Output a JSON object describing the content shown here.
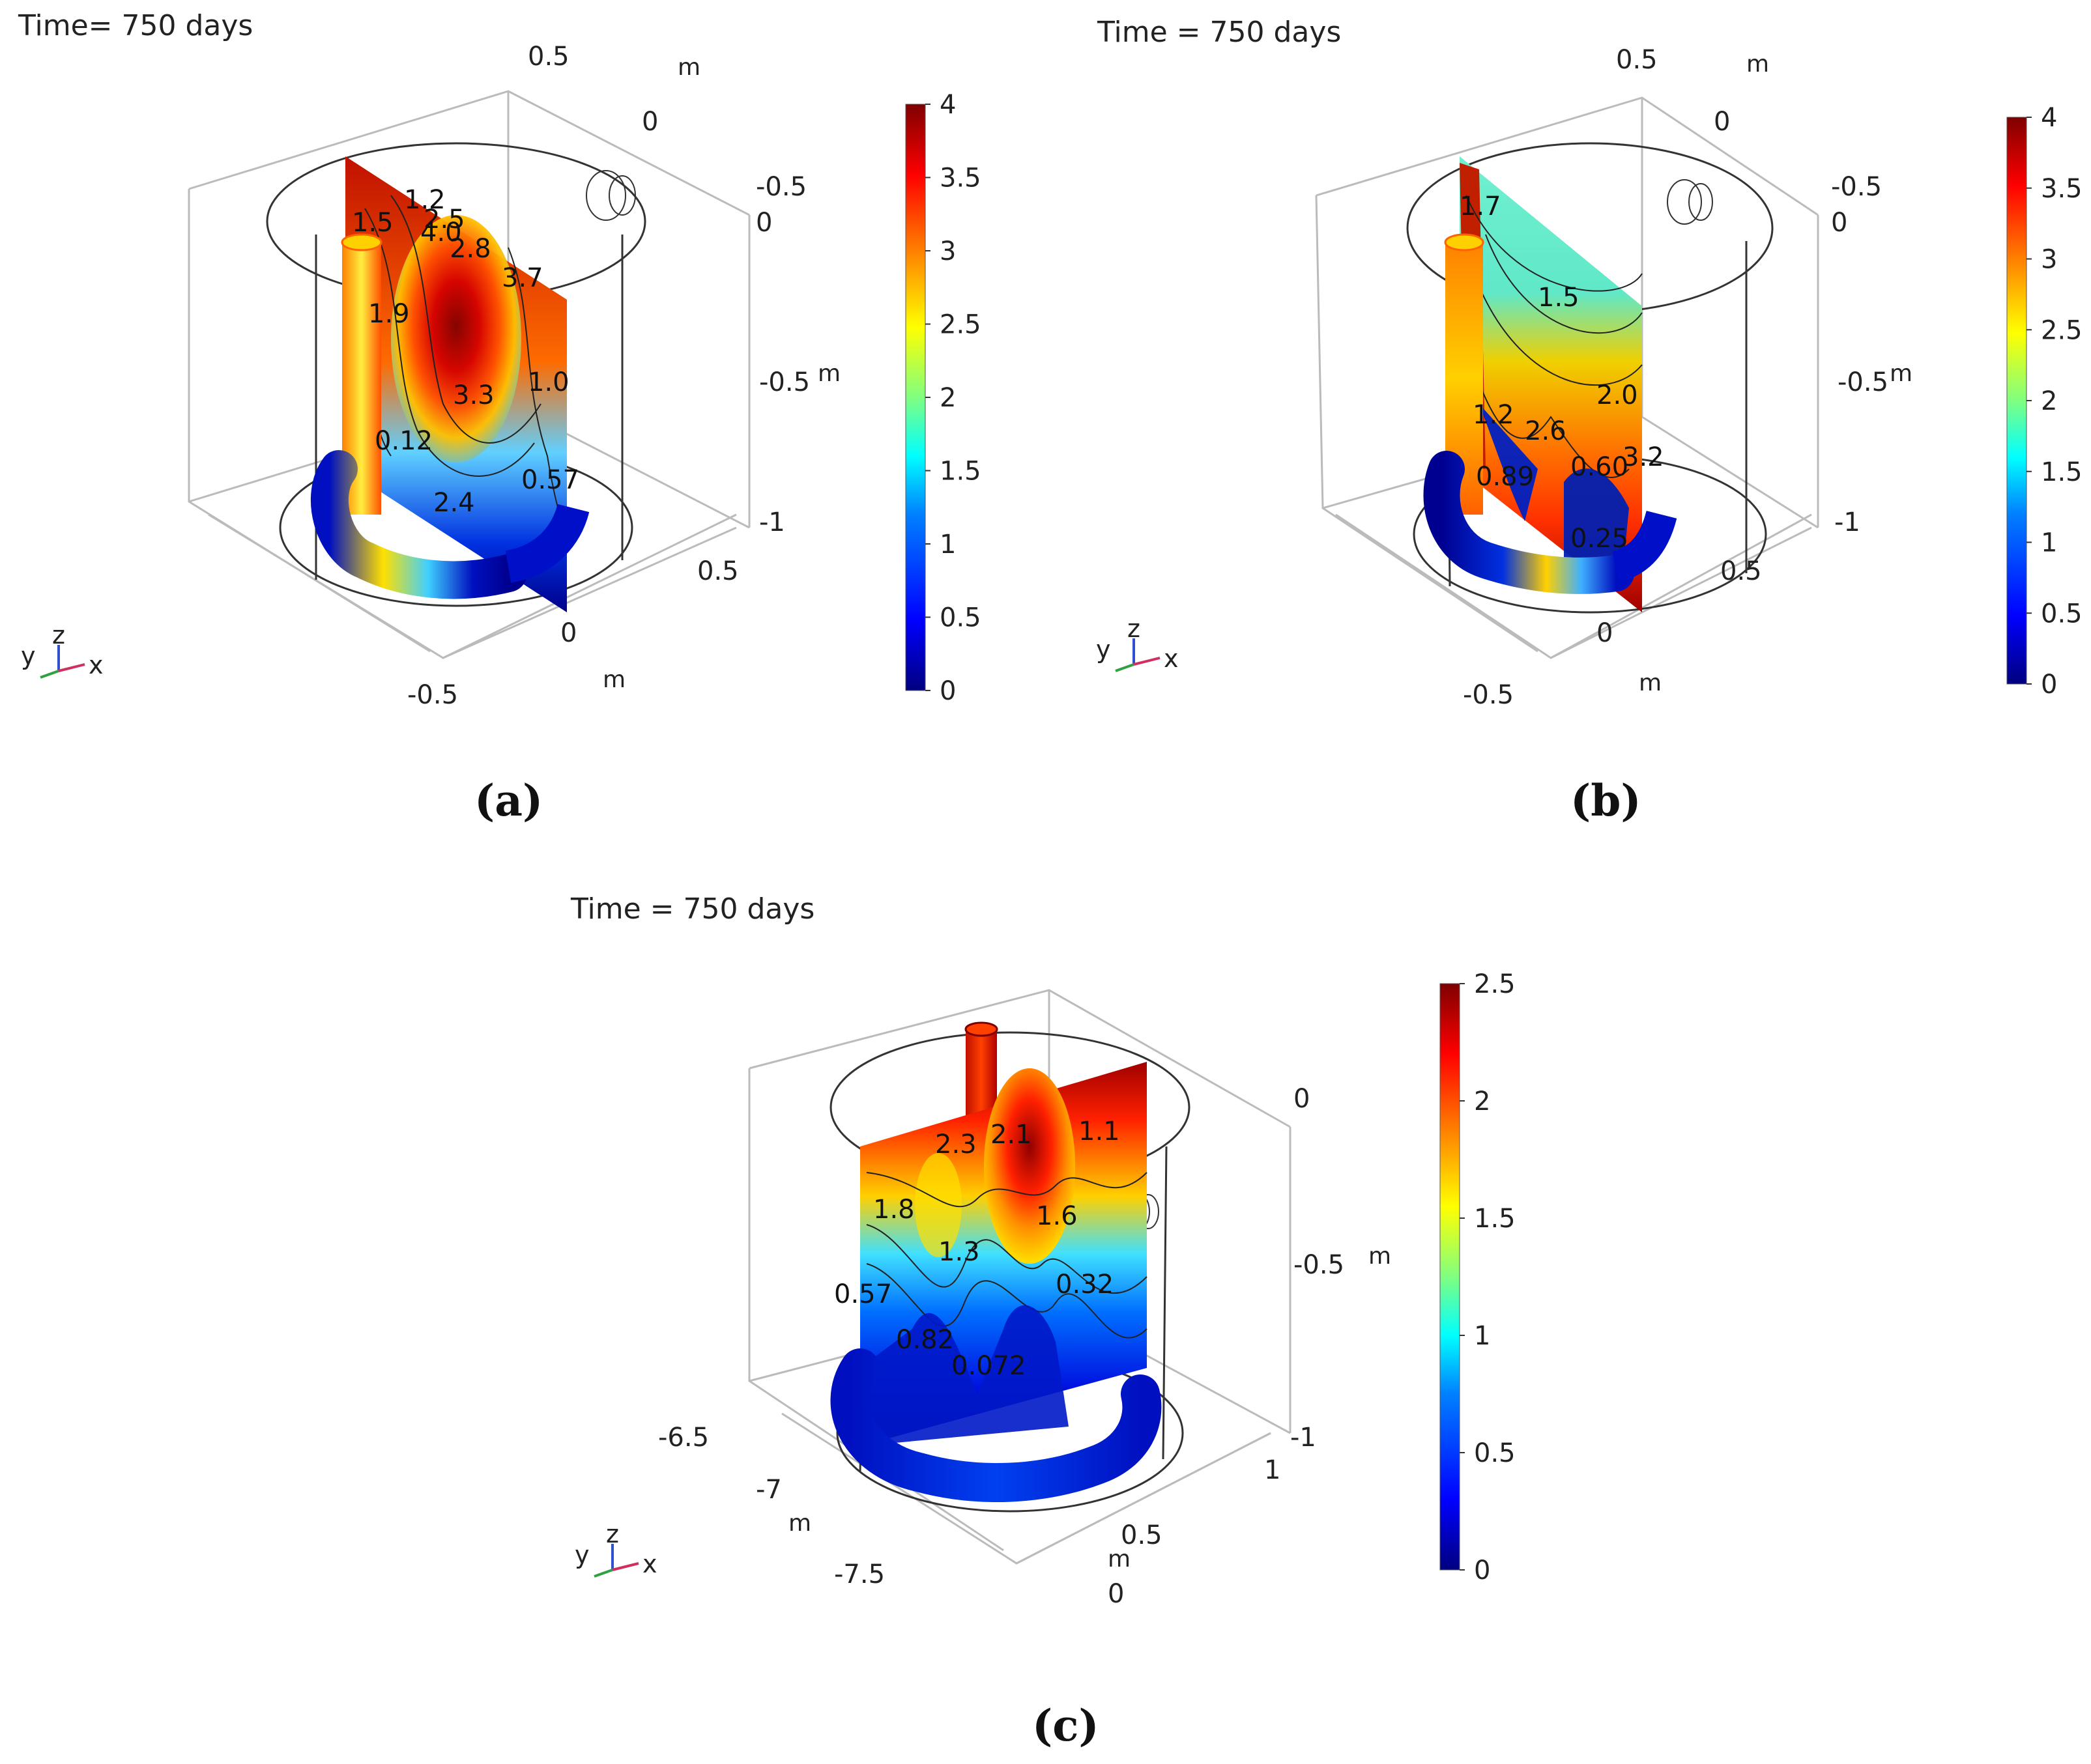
{
  "colorscale": [
    "#00007f",
    "#0000ff",
    "#0080ff",
    "#00ffff",
    "#80ff80",
    "#ffff00",
    "#ff8000",
    "#ff0000",
    "#7f0000"
  ],
  "chart_data": [
    {
      "type": "heatmap",
      "caption": "(a)",
      "title": "Time= 750 days",
      "colorbar": {
        "min": 0,
        "max": 4,
        "ticks": [
          "4",
          "3.5",
          "3",
          "2.5",
          "2",
          "1.5",
          "1",
          "0.5",
          "0"
        ]
      },
      "axis_ticks": [
        "0.5",
        "m",
        "0",
        "-0.5",
        "0",
        "-0.5",
        "m",
        "-1",
        "0.5",
        "0",
        "m",
        "-0.5"
      ],
      "contour_labels": [
        "1.2",
        "1.5",
        "2.5",
        "4.0",
        "2.8",
        "3.7",
        "1.9",
        "3.3",
        "1.0",
        "0.12",
        "0.57",
        "2.4"
      ],
      "triad": {
        "x": "x",
        "y": "y",
        "z": "z"
      }
    },
    {
      "type": "heatmap",
      "caption": "(b)",
      "title": "Time = 750 days",
      "colorbar": {
        "min": 0,
        "max": 4,
        "ticks": [
          "4",
          "3.5",
          "3",
          "2.5",
          "2",
          "1.5",
          "1",
          "0.5",
          "0"
        ]
      },
      "axis_ticks": [
        "0.5",
        "m",
        "0",
        "-0.5",
        "0",
        "-0.5",
        "m",
        "-1",
        "0.5",
        "0",
        "m",
        "-0.5"
      ],
      "contour_labels": [
        "1.7",
        "1.5",
        "2.0",
        "1.2",
        "2.6",
        "0.89",
        "0.60",
        "3.2",
        "0.25"
      ],
      "triad": {
        "x": "x",
        "y": "y",
        "z": "z"
      }
    },
    {
      "type": "heatmap",
      "caption": "(c)",
      "title": "Time = 750 days",
      "colorbar": {
        "min": 0,
        "max": 2.5,
        "ticks": [
          "2.5",
          "2",
          "1.5",
          "1",
          "0.5",
          "0"
        ]
      },
      "axis_ticks": [
        "0",
        "-0.5",
        "m",
        "-1",
        "1",
        "0.5",
        "m",
        "0",
        "-6.5",
        "-7",
        "m",
        "-7.5"
      ],
      "contour_labels": [
        "2.3",
        "2.1",
        "1.1",
        "1.8",
        "1.6",
        "1.3",
        "0.32",
        "0.57",
        "0.82",
        "0.072"
      ],
      "triad": {
        "x": "x",
        "y": "y",
        "z": "z"
      }
    }
  ]
}
